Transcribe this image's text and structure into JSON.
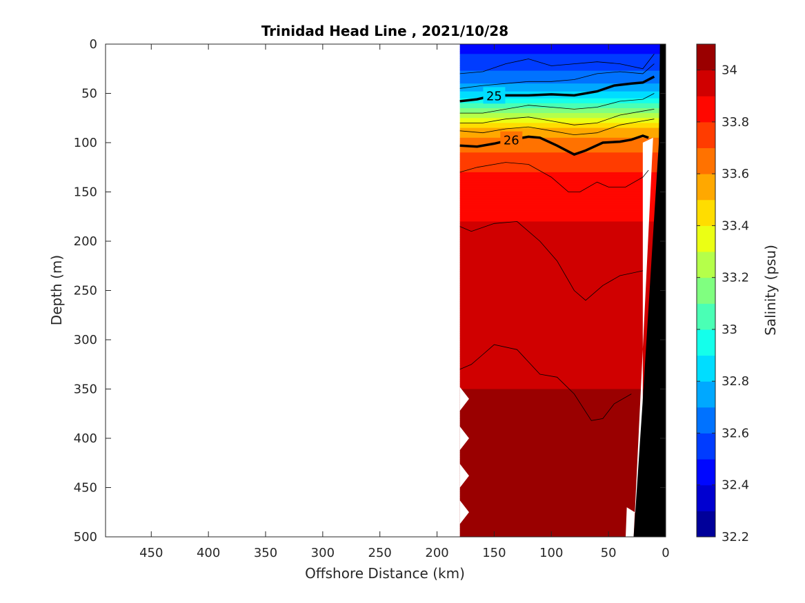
{
  "chart_data": {
    "type": "contourf",
    "title": "Trinidad Head Line , 2021/10/28",
    "xlabel": "Offshore Distance (km)",
    "ylabel": "Depth (m)",
    "colorbar_label": "Salinity (psu)",
    "xlim": [
      490,
      0
    ],
    "x_reversed": true,
    "ylim": [
      0,
      500
    ],
    "y_reversed": true,
    "x_ticks": [
      450,
      400,
      350,
      300,
      250,
      200,
      150,
      100,
      50,
      0
    ],
    "y_ticks": [
      0,
      50,
      100,
      150,
      200,
      250,
      300,
      350,
      400,
      450,
      500
    ],
    "colorbar_ticks": [
      32.2,
      32.4,
      32.6,
      32.8,
      33,
      33.2,
      33.4,
      33.6,
      33.8,
      34
    ],
    "colorbar_range": [
      32.2,
      34.1
    ],
    "colorbar_levels": 19,
    "data_extent_km": [
      0,
      180
    ],
    "salinity_profile": [
      {
        "depth": 0,
        "salinity": 32.45
      },
      {
        "depth": 20,
        "salinity": 32.55
      },
      {
        "depth": 40,
        "salinity": 32.7
      },
      {
        "depth": 55,
        "salinity": 32.9
      },
      {
        "depth": 65,
        "salinity": 33.1
      },
      {
        "depth": 75,
        "salinity": 33.3
      },
      {
        "depth": 85,
        "salinity": 33.5
      },
      {
        "depth": 100,
        "salinity": 33.65
      },
      {
        "depth": 120,
        "salinity": 33.75
      },
      {
        "depth": 140,
        "salinity": 33.85
      },
      {
        "depth": 180,
        "salinity": 33.9
      },
      {
        "depth": 300,
        "salinity": 33.95
      },
      {
        "depth": 350,
        "salinity": 34.0
      },
      {
        "depth": 500,
        "salinity": 34.05
      }
    ],
    "density_contours": [
      {
        "label": "25",
        "bold": true,
        "x": [
          180,
          165,
          150,
          135,
          120,
          100,
          80,
          60,
          45,
          30,
          20,
          10
        ],
        "y": [
          58,
          56,
          52,
          52,
          52,
          51,
          52,
          48,
          42,
          40,
          39,
          33
        ]
      },
      {
        "label": "26",
        "bold": true,
        "x": [
          180,
          165,
          150,
          135,
          120,
          110,
          95,
          80,
          70,
          55,
          40,
          30,
          20,
          15
        ],
        "y": [
          103,
          104,
          101,
          97,
          94,
          95,
          103,
          112,
          108,
          100,
          99,
          97,
          93,
          95
        ]
      },
      {
        "label": "",
        "bold": false,
        "x": [
          180,
          165,
          140,
          120,
          100,
          85,
          75,
          60,
          50,
          35,
          20,
          15
        ],
        "y": [
          130,
          125,
          120,
          122,
          135,
          150,
          150,
          140,
          145,
          145,
          135,
          128
        ]
      },
      {
        "label": "",
        "bold": false,
        "x": [
          180,
          170,
          150,
          130,
          110,
          95,
          80,
          70,
          55,
          40,
          20
        ],
        "y": [
          185,
          190,
          182,
          180,
          200,
          220,
          250,
          260,
          245,
          235,
          230
        ]
      },
      {
        "label": "",
        "bold": false,
        "x": [
          180,
          170,
          160,
          150,
          130,
          110,
          95,
          80,
          65,
          55,
          45,
          30
        ],
        "y": [
          330,
          325,
          315,
          305,
          310,
          335,
          338,
          355,
          382,
          380,
          365,
          355
        ]
      }
    ],
    "shallow_contours": [
      {
        "x": [
          180,
          160,
          140,
          120,
          100,
          80,
          60,
          40,
          20,
          10
        ],
        "y": [
          30,
          28,
          20,
          15,
          22,
          20,
          18,
          20,
          25,
          10
        ]
      },
      {
        "x": [
          180,
          160,
          140,
          120,
          100,
          80,
          60,
          40,
          20,
          10
        ],
        "y": [
          45,
          42,
          40,
          38,
          38,
          36,
          30,
          28,
          30,
          20
        ]
      },
      {
        "x": [
          180,
          160,
          140,
          120,
          100,
          80,
          60,
          40,
          20,
          10
        ],
        "y": [
          70,
          70,
          66,
          62,
          64,
          66,
          64,
          58,
          56,
          50
        ]
      },
      {
        "x": [
          180,
          160,
          140,
          120,
          100,
          80,
          60,
          40,
          20,
          10
        ],
        "y": [
          80,
          80,
          76,
          74,
          78,
          82,
          80,
          72,
          68,
          66
        ]
      },
      {
        "x": [
          180,
          160,
          140,
          120,
          100,
          80,
          60,
          40,
          20,
          10
        ],
        "y": [
          88,
          90,
          86,
          84,
          88,
          92,
          90,
          82,
          78,
          76
        ]
      }
    ],
    "bottom_polygon_km_m": [
      [
        0,
        0
      ],
      [
        0,
        500
      ],
      [
        28,
        500
      ],
      [
        20,
        360
      ],
      [
        6,
        100
      ],
      [
        5,
        0
      ]
    ]
  }
}
